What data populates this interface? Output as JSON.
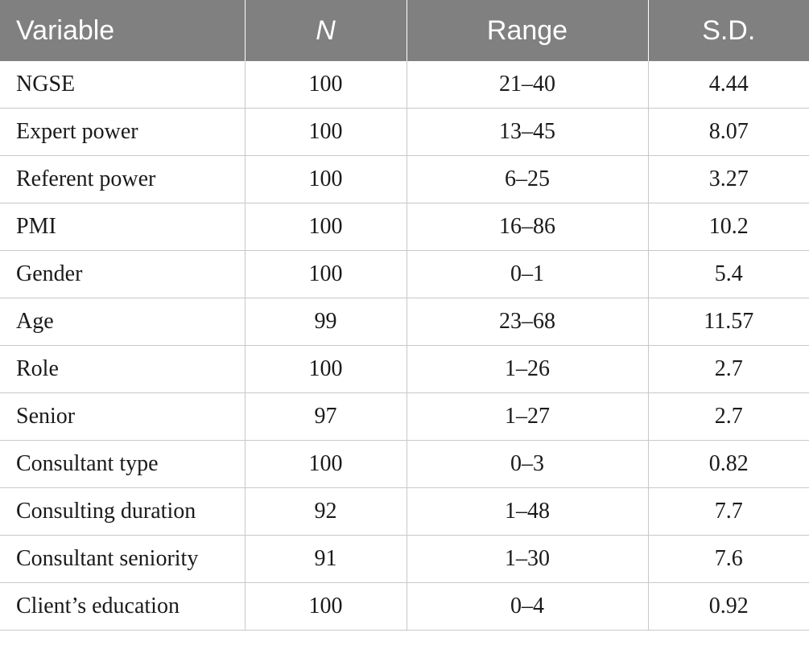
{
  "table": {
    "headers": [
      "Variable",
      "N",
      "Range",
      "S.D."
    ],
    "rows": [
      [
        "NGSE",
        "100",
        "21–40",
        "4.44"
      ],
      [
        "Expert power",
        "100",
        "13–45",
        "8.07"
      ],
      [
        "Referent power",
        "100",
        "6–25",
        "3.27"
      ],
      [
        "PMI",
        "100",
        "16–86",
        "10.2"
      ],
      [
        "Gender",
        "100",
        "0–1",
        "5.4"
      ],
      [
        "Age",
        "99",
        "23–68",
        "11.57"
      ],
      [
        "Role",
        "100",
        "1–26",
        "2.7"
      ],
      [
        "Senior",
        "97",
        "1–27",
        "2.7"
      ],
      [
        "Consultant type",
        "100",
        "0–3",
        "0.82"
      ],
      [
        "Consulting duration",
        "92",
        "1–48",
        "7.7"
      ],
      [
        "Consultant seniority",
        "91",
        "1–30",
        "7.6"
      ],
      [
        "Client’s education",
        "100",
        "0–4",
        "0.92"
      ]
    ]
  },
  "colors": {
    "header_background": "#808080",
    "header_text": "#ffffff",
    "grid_lines": "#c8c8c8"
  }
}
